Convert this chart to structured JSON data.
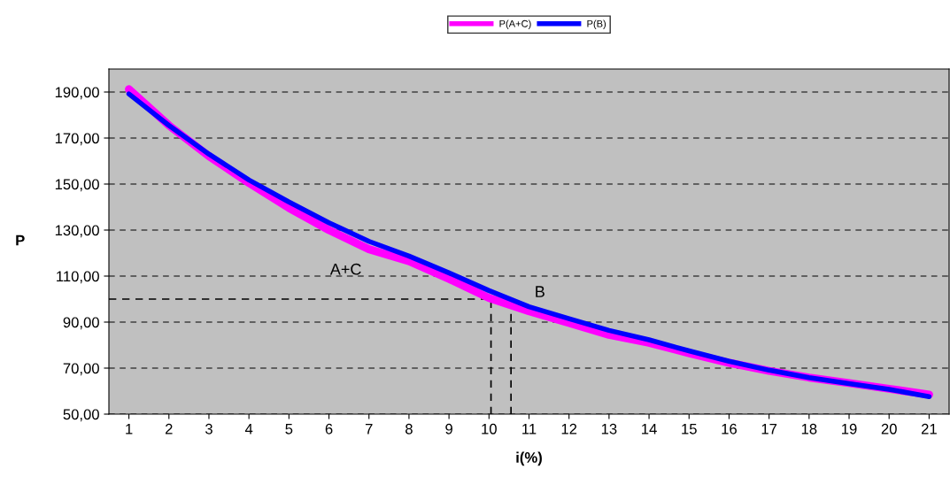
{
  "chart_data": {
    "type": "line",
    "xlabel": "i(%)",
    "ylabel": "P",
    "x": [
      1,
      2,
      3,
      4,
      5,
      6,
      7,
      8,
      9,
      10,
      11,
      12,
      13,
      14,
      15,
      16,
      17,
      18,
      19,
      20,
      21
    ],
    "series": [
      {
        "name": "P(A+C)",
        "color": "#ff00ff",
        "values": [
          191.2,
          175.5,
          162.1,
          150.5,
          139.6,
          130.0,
          121.7,
          116.5,
          108.8,
          100.5,
          94.7,
          89.6,
          84.5,
          81.0,
          76.5,
          72.3,
          68.8,
          65.9,
          63.5,
          61.0,
          58.5
        ]
      },
      {
        "name": "P(B)",
        "color": "#0000ff",
        "values": [
          189.2,
          175.5,
          163.0,
          151.8,
          142.2,
          133.2,
          125.1,
          118.7,
          111.4,
          103.7,
          96.7,
          91.5,
          86.4,
          82.3,
          77.5,
          73.0,
          69.1,
          65.9,
          63.3,
          60.8,
          57.6
        ]
      }
    ],
    "xlim": [
      0.5,
      21.5
    ],
    "xticks": [
      1,
      2,
      3,
      4,
      5,
      6,
      7,
      8,
      9,
      10,
      11,
      12,
      13,
      14,
      15,
      16,
      17,
      18,
      19,
      20,
      21
    ],
    "ylim": [
      50,
      200
    ],
    "yticks": [
      {
        "value": 50,
        "label": "50,00"
      },
      {
        "value": 70,
        "label": "70,00"
      },
      {
        "value": 90,
        "label": "90,00"
      },
      {
        "value": 110,
        "label": "110,00"
      },
      {
        "value": 130,
        "label": "130,00"
      },
      {
        "value": 150,
        "label": "150,00"
      },
      {
        "value": 170,
        "label": "170,00"
      },
      {
        "value": 190,
        "label": "190,00"
      }
    ],
    "grid": "y",
    "legend": "top",
    "marker": "none",
    "line_style": "solid",
    "ref_lines": [
      {
        "axis": "y",
        "value": 100,
        "color": "#000000",
        "line_style": "dashed"
      },
      {
        "axis": "x",
        "value": 10.05,
        "color": "#000000",
        "line_style": "dashed"
      },
      {
        "axis": "x",
        "value": 10.55,
        "color": "#000000",
        "line_style": "dashed"
      }
    ],
    "annotations": [
      "A+C",
      "B"
    ]
  }
}
